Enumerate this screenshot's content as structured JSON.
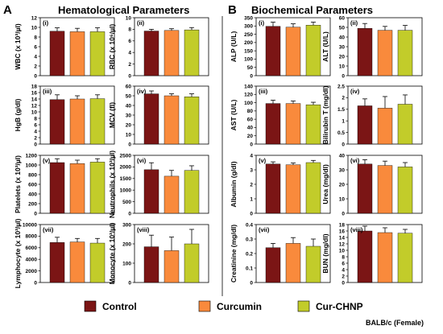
{
  "section_a": {
    "letter": "A",
    "title": "Hematological Parameters"
  },
  "section_b": {
    "letter": "B",
    "title": "Biochemical Parameters"
  },
  "legend": [
    {
      "label": "Control",
      "color": "#7b1515"
    },
    {
      "label": "Curcumin",
      "color": "#f98a3c"
    },
    {
      "label": "Cur-CHNP",
      "color": "#c2cc2a"
    }
  ],
  "footer": "BALB/c (Female)",
  "chart_data": [
    {
      "type": "bar",
      "section": "A",
      "label": "(i)",
      "ylabel": "WBC (x 10³/µl)",
      "ylim": [
        0,
        12
      ],
      "ticks": [
        0,
        2,
        4,
        6,
        8,
        10,
        12
      ],
      "categories": [
        "Control",
        "Curcumin",
        "Cur-CHNP"
      ],
      "values": [
        9.2,
        9.1,
        9.1
      ],
      "errors": [
        0.7,
        0.7,
        0.8
      ]
    },
    {
      "type": "bar",
      "section": "A",
      "label": "(ii)",
      "ylabel": "RBC (x 10⁶/µl)",
      "ylim": [
        0,
        10
      ],
      "ticks": [
        0,
        2,
        4,
        6,
        8,
        10
      ],
      "categories": [
        "Control",
        "Curcumin",
        "Cur-CHNP"
      ],
      "values": [
        7.7,
        7.8,
        7.9
      ],
      "errors": [
        0.3,
        0.3,
        0.4
      ]
    },
    {
      "type": "bar",
      "section": "A",
      "label": "(iii)",
      "ylabel": "HgB (g/dl)",
      "ylim": [
        0,
        18
      ],
      "ticks": [
        0,
        2,
        4,
        6,
        8,
        10,
        12,
        14,
        16,
        18
      ],
      "categories": [
        "Control",
        "Curcumin",
        "Cur-CHNP"
      ],
      "values": [
        13.8,
        14.0,
        14.1
      ],
      "errors": [
        1.5,
        1.0,
        1.2
      ]
    },
    {
      "type": "bar",
      "section": "A",
      "label": "(iv)",
      "ylabel": "MCV (fl)",
      "ylim": [
        0,
        60
      ],
      "ticks": [
        0,
        10,
        20,
        30,
        40,
        50,
        60
      ],
      "categories": [
        "Control",
        "Curcumin",
        "Cur-CHNP"
      ],
      "values": [
        52,
        50,
        49
      ],
      "errors": [
        3,
        2,
        3
      ]
    },
    {
      "type": "bar",
      "section": "A",
      "label": "(v)",
      "ylabel": "Platelets (x 10³/µl)",
      "ylim": [
        0,
        1200
      ],
      "ticks": [
        0,
        200,
        400,
        600,
        800,
        1000,
        1200
      ],
      "categories": [
        "Control",
        "Curcumin",
        "Cur-CHNP"
      ],
      "values": [
        1050,
        1030,
        1060
      ],
      "errors": [
        80,
        70,
        70
      ]
    },
    {
      "type": "bar",
      "section": "A",
      "label": "(vi)",
      "ylabel": "Neutrophils (x 10³/µl)",
      "ylim": [
        0,
        2500
      ],
      "ticks": [
        0,
        500,
        1000,
        1500,
        2000,
        2500
      ],
      "categories": [
        "Control",
        "Curcumin",
        "Cur-CHNP"
      ],
      "values": [
        1880,
        1600,
        1850
      ],
      "errors": [
        300,
        250,
        200
      ]
    },
    {
      "type": "bar",
      "section": "A",
      "label": "(vii)",
      "ylabel": "Lymphocyte (x 10³/µl)",
      "ylim": [
        0,
        10000
      ],
      "ticks": [
        0,
        2000,
        4000,
        6000,
        8000,
        10000
      ],
      "categories": [
        "Control",
        "Curcumin",
        "Cur-CHNP"
      ],
      "values": [
        6900,
        7000,
        6800
      ],
      "errors": [
        900,
        600,
        800
      ]
    },
    {
      "type": "bar",
      "section": "A",
      "label": "(viii)",
      "ylabel": "Monocyte (x 10³/µl)",
      "ylim": [
        0,
        300
      ],
      "ticks": [
        0,
        100,
        200,
        300
      ],
      "categories": [
        "Control",
        "Curcumin",
        "Cur-CHNP"
      ],
      "values": [
        185,
        165,
        200
      ],
      "errors": [
        60,
        70,
        75
      ]
    },
    {
      "type": "bar",
      "section": "B",
      "label": "(i)",
      "ylabel": "ALP (U/L)",
      "ylim": [
        0,
        350
      ],
      "ticks": [
        0,
        50,
        100,
        150,
        200,
        250,
        300,
        350
      ],
      "categories": [
        "Control",
        "Curcumin",
        "Cur-CHNP"
      ],
      "values": [
        298,
        293,
        305
      ],
      "errors": [
        25,
        20,
        18
      ]
    },
    {
      "type": "bar",
      "section": "B",
      "label": "(ii)",
      "ylabel": "ALT (U/L)",
      "ylim": [
        0,
        60
      ],
      "ticks": [
        0,
        10,
        20,
        30,
        40,
        50,
        60
      ],
      "categories": [
        "Control",
        "Curcumin",
        "Cur-CHNP"
      ],
      "values": [
        49,
        47,
        47
      ],
      "errors": [
        5,
        4,
        5
      ]
    },
    {
      "type": "bar",
      "section": "B",
      "label": "(iii)",
      "ylabel": "AST (U/L)",
      "ylim": [
        0,
        140
      ],
      "ticks": [
        0,
        20,
        40,
        60,
        80,
        100,
        120,
        140
      ],
      "categories": [
        "Control",
        "Curcumin",
        "Cur-CHNP"
      ],
      "values": [
        98,
        98,
        95
      ],
      "errors": [
        8,
        6,
        6
      ]
    },
    {
      "type": "bar",
      "section": "B",
      "label": "(iv)",
      "ylabel": "Bilirubin T (mg/dl)",
      "ylim": [
        0,
        2.5
      ],
      "ticks": [
        0,
        0.5,
        1,
        1.5,
        2,
        2.5
      ],
      "categories": [
        "Control",
        "Curcumin",
        "Cur-CHNP"
      ],
      "values": [
        1.65,
        1.55,
        1.72
      ],
      "errors": [
        0.3,
        0.5,
        0.4
      ]
    },
    {
      "type": "bar",
      "section": "B",
      "label": "(v)",
      "ylabel": "Albumin (g/dl)",
      "ylim": [
        0,
        4
      ],
      "ticks": [
        0,
        1,
        2,
        3,
        4
      ],
      "categories": [
        "Control",
        "Curcumin",
        "Cur-CHNP"
      ],
      "values": [
        3.4,
        3.35,
        3.5
      ],
      "errors": [
        0.15,
        0.12,
        0.15
      ]
    },
    {
      "type": "bar",
      "section": "B",
      "label": "(vi)",
      "ylabel": "Urea (mg/dl)",
      "ylim": [
        0,
        40
      ],
      "ticks": [
        0,
        10,
        20,
        30,
        40
      ],
      "categories": [
        "Control",
        "Curcumin",
        "Cur-CHNP"
      ],
      "values": [
        34,
        33,
        32
      ],
      "errors": [
        3,
        3,
        3
      ]
    },
    {
      "type": "bar",
      "section": "B",
      "label": "(vii)",
      "ylabel": "Creatinine (mg/dl)",
      "ylim": [
        0,
        0.4
      ],
      "ticks": [
        0,
        0.1,
        0.2,
        0.3,
        0.4
      ],
      "categories": [
        "Control",
        "Curcumin",
        "Cur-CHNP"
      ],
      "values": [
        0.24,
        0.27,
        0.25
      ],
      "errors": [
        0.03,
        0.04,
        0.05
      ]
    },
    {
      "type": "bar",
      "section": "B",
      "label": "(viii)",
      "ylabel": "BUN (mg/dl)",
      "ylim": [
        0,
        18
      ],
      "ticks": [
        0,
        2,
        4,
        6,
        8,
        10,
        12,
        14,
        16,
        18
      ],
      "categories": [
        "Control",
        "Curcumin",
        "Cur-CHNP"
      ],
      "values": [
        16,
        15.5,
        15.3
      ],
      "errors": [
        1.5,
        1.5,
        1.2
      ]
    }
  ]
}
